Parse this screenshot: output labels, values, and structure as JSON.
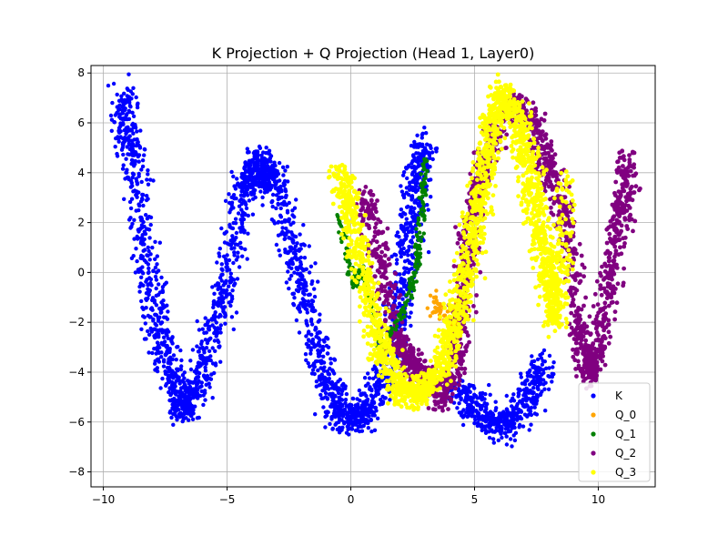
{
  "chart_data": {
    "type": "scatter",
    "title": "K Projection + Q Projection (Head 1, Layer0)",
    "xlabel": "",
    "ylabel": "",
    "xlim": [
      -10.5,
      12.3
    ],
    "ylim": [
      -8.6,
      8.3
    ],
    "x_ticks": [
      -10,
      -5,
      0,
      5,
      10
    ],
    "y_ticks": [
      -8,
      -6,
      -4,
      -2,
      0,
      2,
      4,
      6,
      8
    ],
    "grid": true,
    "legend_position": "lower-right",
    "series": [
      {
        "name": "K",
        "color": "#0000ff",
        "description_shape": "W-shaped band",
        "path": [
          [
            -9.2,
            7.2
          ],
          [
            -8.9,
            4.8
          ],
          [
            -8.2,
            0
          ],
          [
            -7.5,
            -3.2
          ],
          [
            -6.8,
            -5.5
          ],
          [
            -6.2,
            -4.5
          ],
          [
            -5.2,
            -1
          ],
          [
            -4.3,
            3.2
          ],
          [
            -3.7,
            4.6
          ],
          [
            -3.1,
            3.6
          ],
          [
            -2.1,
            0
          ],
          [
            -1.2,
            -3.6
          ],
          [
            -0.4,
            -5.8
          ],
          [
            0.6,
            -5.6
          ],
          [
            1.6,
            -3.5
          ],
          [
            2.2,
            0
          ],
          [
            2.6,
            3.2
          ],
          [
            3.0,
            5.2
          ]
        ],
        "path2": [
          [
            4.4,
            -4.8
          ],
          [
            5.2,
            -5.6
          ],
          [
            6.3,
            -6.2
          ],
          [
            7.2,
            -5.0
          ],
          [
            7.8,
            -3.5
          ]
        ]
      },
      {
        "name": "Q_0",
        "color": "#ffa500",
        "description_shape": "hidden under Q_3",
        "path": [
          [
            3.2,
            -1
          ],
          [
            4.0,
            -2
          ],
          [
            4.6,
            -1
          ]
        ]
      },
      {
        "name": "Q_1",
        "color": "#008000",
        "description_shape": "thin band",
        "path": [
          [
            -0.5,
            2.3
          ],
          [
            0.1,
            -0.5
          ],
          [
            0.5,
            0.2
          ],
          [
            1.2,
            -3.0
          ],
          [
            2.2,
            -1.5
          ],
          [
            2.7,
            0.5
          ],
          [
            2.9,
            2.5
          ],
          [
            3.0,
            4.6
          ]
        ]
      },
      {
        "name": "Q_2",
        "color": "#800080",
        "description_shape": "W-shaped band",
        "path": [
          [
            0.5,
            3.2
          ],
          [
            1.2,
            0.5
          ],
          [
            1.8,
            -2.6
          ],
          [
            2.3,
            -3.5
          ],
          [
            3.0,
            -4.2
          ],
          [
            3.7,
            -5.2
          ],
          [
            4.3,
            -3.2
          ],
          [
            4.6,
            0
          ],
          [
            5.0,
            2.6
          ],
          [
            5.5,
            4.8
          ],
          [
            6.5,
            6.8
          ],
          [
            7.4,
            6.0
          ],
          [
            8.0,
            4.2
          ],
          [
            8.7,
            2
          ],
          [
            9.2,
            -2
          ],
          [
            9.6,
            -4.2
          ],
          [
            10.0,
            -3
          ],
          [
            10.5,
            0
          ],
          [
            11.0,
            2.5
          ],
          [
            11.2,
            4.8
          ]
        ]
      },
      {
        "name": "Q_3",
        "color": "#ffff00",
        "description_shape": "W-shaped band",
        "path": [
          [
            -0.5,
            4.1
          ],
          [
            0,
            2.4
          ],
          [
            0.6,
            -0.5
          ],
          [
            1.3,
            -3.2
          ],
          [
            2.0,
            -4.7
          ],
          [
            2.8,
            -4.9
          ],
          [
            3.7,
            -3.8
          ],
          [
            4.3,
            -1.8
          ],
          [
            4.8,
            0.5
          ],
          [
            5.2,
            2.8
          ],
          [
            5.6,
            5.0
          ],
          [
            6.0,
            7.3
          ],
          [
            6.8,
            6.2
          ],
          [
            7.2,
            4.2
          ],
          [
            7.6,
            2.0
          ],
          [
            8.0,
            0
          ],
          [
            8.3,
            -2.0
          ],
          [
            8.7,
            3.8
          ]
        ]
      }
    ]
  }
}
